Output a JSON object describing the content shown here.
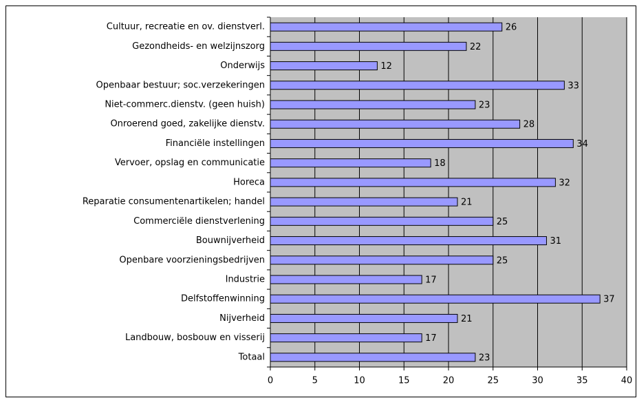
{
  "chart_data": {
    "type": "bar",
    "orientation": "horizontal",
    "categories": [
      "Cultuur, recreatie en ov. dienstverl.",
      "Gezondheids- en welzijnszorg",
      "Onderwijs",
      "Openbaar bestuur; soc.verzekeringen",
      "Niet-commerc.dienstv. (geen huish)",
      "Onroerend goed, zakelijke dienstv.",
      "Financiële instellingen",
      "Vervoer, opslag en communicatie",
      "Horeca",
      "Reparatie consumentenartikelen; handel",
      "Commerciële dienstverlening",
      "Bouwnijverheid",
      "Openbare voorzieningsbedrijven",
      "Industrie",
      "Delfstoffenwinning",
      "Nijverheid",
      "Landbouw, bosbouw en visserij",
      "Totaal"
    ],
    "values": [
      26,
      22,
      12,
      33,
      23,
      28,
      34,
      18,
      32,
      21,
      25,
      31,
      25,
      17,
      37,
      21,
      17,
      23
    ],
    "color": "#9999ff",
    "plot_background": "#c0c0c0",
    "xlim": [
      0,
      40
    ],
    "xticks": [
      0,
      5,
      10,
      15,
      20,
      25,
      30,
      35,
      40
    ],
    "grid": true
  }
}
